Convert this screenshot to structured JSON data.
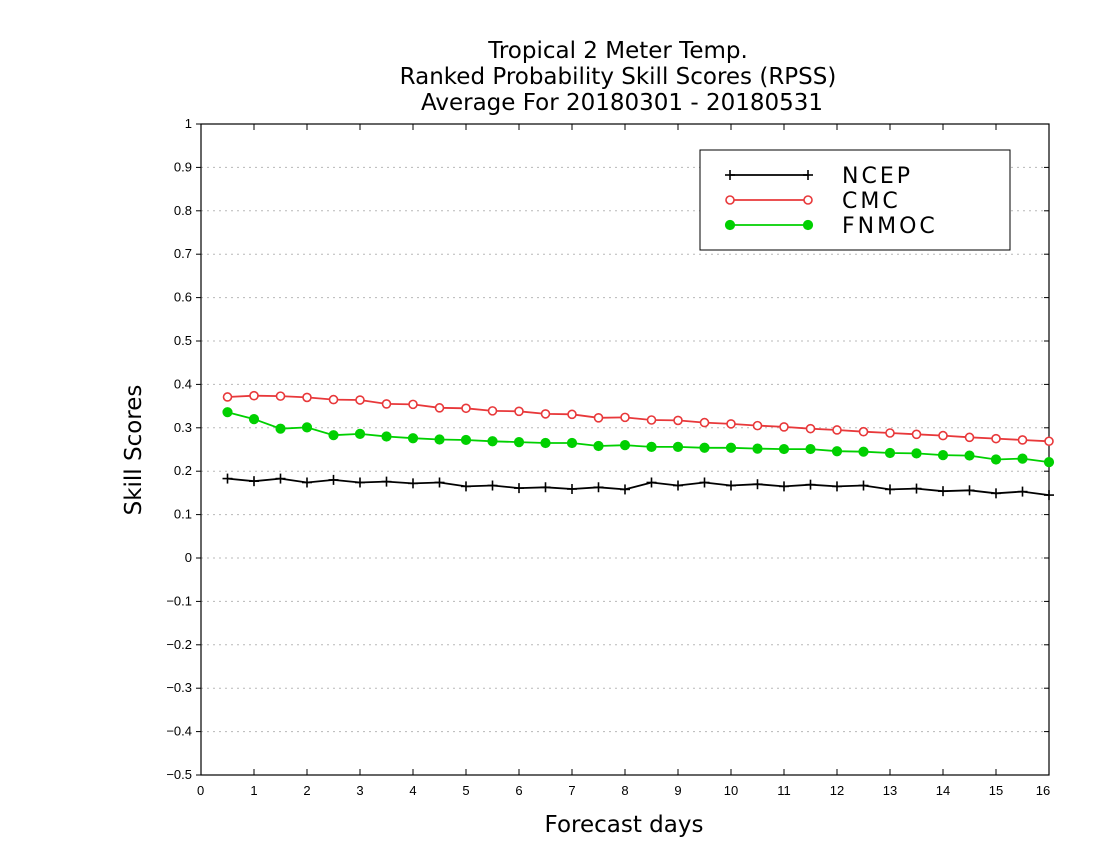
{
  "chart_data": {
    "type": "line",
    "title": [
      "Tropical 2 Meter Temp.",
      "Ranked Probability Skill Scores (RPSS)",
      "Average For 20180301 - 20180531"
    ],
    "xlabel": "Forecast days",
    "ylabel": "Skill Scores",
    "xlim": [
      0,
      16
    ],
    "ylim": [
      -0.5,
      1
    ],
    "xticks": [
      "0",
      "1",
      "2",
      "3",
      "4",
      "5",
      "6",
      "7",
      "8",
      "9",
      "10",
      "11",
      "12",
      "13",
      "14",
      "15",
      "16"
    ],
    "yticks": [
      {
        "value": -0.5,
        "label": "−0.5"
      },
      {
        "value": -0.4,
        "label": "−0.4"
      },
      {
        "value": -0.3,
        "label": "−0.3"
      },
      {
        "value": -0.2,
        "label": "−0.2"
      },
      {
        "value": -0.1,
        "label": "−0.1"
      },
      {
        "value": 0,
        "label": "0"
      },
      {
        "value": 0.1,
        "label": "0.1"
      },
      {
        "value": 0.2,
        "label": "0.2"
      },
      {
        "value": 0.3,
        "label": "0.3"
      },
      {
        "value": 0.4,
        "label": "0.4"
      },
      {
        "value": 0.5,
        "label": "0.5"
      },
      {
        "value": 0.6,
        "label": "0.6"
      },
      {
        "value": 0.7,
        "label": "0.7"
      },
      {
        "value": 0.8,
        "label": "0.8"
      },
      {
        "value": 0.9,
        "label": "0.9"
      },
      {
        "value": 1,
        "label": "1"
      }
    ],
    "grid": "horizontal-dotted",
    "legend_position": "top-right",
    "x": [
      0.5,
      1,
      1.5,
      2,
      2.5,
      3,
      3.5,
      4,
      4.5,
      5,
      5.5,
      6,
      6.5,
      7,
      7.5,
      8,
      8.5,
      9,
      9.5,
      10,
      10.5,
      11,
      11.5,
      12,
      12.5,
      13,
      13.5,
      14,
      14.5,
      15,
      15.5,
      16
    ],
    "series": [
      {
        "name": "NCEP",
        "color": "#000000",
        "marker": "plus",
        "values": [
          0.183,
          0.177,
          0.183,
          0.174,
          0.18,
          0.174,
          0.176,
          0.172,
          0.174,
          0.165,
          0.167,
          0.161,
          0.163,
          0.159,
          0.163,
          0.158,
          0.174,
          0.167,
          0.174,
          0.167,
          0.17,
          0.165,
          0.169,
          0.165,
          0.167,
          0.158,
          0.16,
          0.154,
          0.156,
          0.149,
          0.153,
          0.145
        ]
      },
      {
        "name": "CMC",
        "color": "#e8383a",
        "marker": "open-circle",
        "values": [
          0.371,
          0.374,
          0.373,
          0.37,
          0.365,
          0.364,
          0.355,
          0.354,
          0.346,
          0.345,
          0.339,
          0.338,
          0.332,
          0.331,
          0.323,
          0.324,
          0.318,
          0.317,
          0.312,
          0.309,
          0.305,
          0.302,
          0.298,
          0.295,
          0.291,
          0.288,
          0.285,
          0.282,
          0.278,
          0.275,
          0.272,
          0.269
        ]
      },
      {
        "name": "FNMOC",
        "color": "#00d000",
        "marker": "filled-circle",
        "values": [
          0.336,
          0.32,
          0.298,
          0.301,
          0.283,
          0.286,
          0.28,
          0.276,
          0.273,
          0.272,
          0.269,
          0.267,
          0.265,
          0.265,
          0.258,
          0.26,
          0.256,
          0.256,
          0.254,
          0.254,
          0.252,
          0.251,
          0.251,
          0.246,
          0.245,
          0.242,
          0.241,
          0.237,
          0.236,
          0.227,
          0.229,
          0.221
        ]
      }
    ]
  }
}
